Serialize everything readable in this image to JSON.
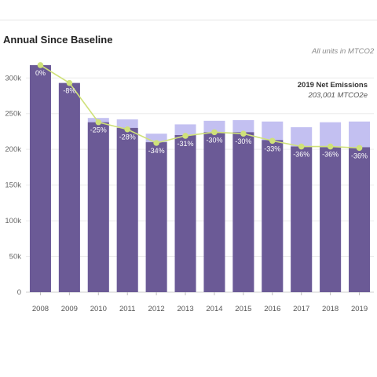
{
  "header": {
    "title": "Annual Since Baseline",
    "units_note": "All units in MTCO2",
    "net_title": "2019 Net Emissions",
    "net_value": "203,001 MTCO2e",
    "ylabel_fragment": "MTCO2e"
  },
  "chart_data": {
    "type": "bar",
    "categories": [
      "2008",
      "2009",
      "2010",
      "2011",
      "2012",
      "2013",
      "2014",
      "2015",
      "2016",
      "2017",
      "2018",
      "2019"
    ],
    "series": [
      {
        "values": [
          318000,
          293000,
          238000,
          230000,
          210000,
          220000,
          224000,
          224000,
          213000,
          204000,
          203000,
          203000
        ],
        "color": "#6b5a96"
      },
      {
        "values": [
          318000,
          293000,
          244000,
          242000,
          222000,
          235000,
          240000,
          241000,
          239000,
          231000,
          238000,
          239000
        ],
        "color": "#c3c0f1"
      }
    ],
    "line": {
      "values": [
        318000,
        293000,
        238000,
        228000,
        209000,
        219000,
        224000,
        222000,
        212000,
        204000,
        204000,
        202000
      ],
      "labels": [
        "0%",
        "-8%",
        "-25%",
        "-28%",
        "-34%",
        "-31%",
        "-30%",
        "-30%",
        "-33%",
        "-36%",
        "-36%",
        "-36%"
      ],
      "color": "#cfe17a"
    },
    "yticks": [
      0,
      50000,
      100000,
      150000,
      200000,
      250000,
      300000
    ],
    "ytick_labels": [
      "0",
      "50k",
      "100k",
      "150k",
      "200k",
      "250k",
      "300k"
    ],
    "ylim": [
      0,
      330000
    ],
    "grid": true
  }
}
